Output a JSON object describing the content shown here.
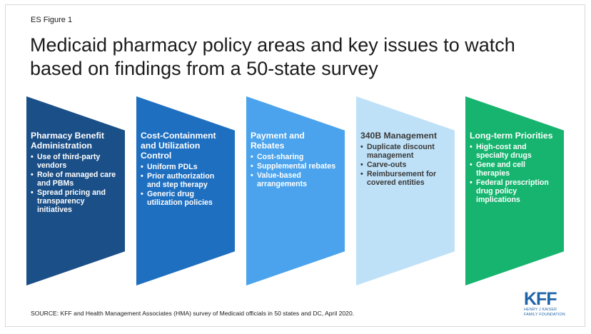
{
  "figure_label": "ES Figure 1",
  "title_line1": "Medicaid pharmacy policy areas and key issues to watch",
  "title_line2": "based on findings from a 50-state survey",
  "steps": [
    {
      "title": "Pharmacy Benefit Administration",
      "color": "#1b4f87",
      "text_color": "#ffffff",
      "items": [
        "Use of third-party vendors",
        "Role of managed care and PBMs",
        "Spread pricing and transparency initiatives"
      ]
    },
    {
      "title": "Cost-Containment and Utilization Control",
      "color": "#1f6fc0",
      "text_color": "#ffffff",
      "items": [
        "Uniform PDLs",
        "Prior authorization and step therapy",
        "Generic drug utilization policies"
      ]
    },
    {
      "title": "Payment and Rebates",
      "color": "#4aa3ec",
      "text_color": "#ffffff",
      "items": [
        "Cost-sharing",
        "Supplemental rebates",
        "Value-based arrangements"
      ]
    },
    {
      "title": "340B Management",
      "color": "#bfe1f8",
      "text_color": "#3a3a3a",
      "items": [
        "Duplicate discount management",
        "Carve-outs",
        "Reimbursement for covered entities"
      ]
    },
    {
      "title": "Long-term Priorities",
      "color": "#16b46e",
      "text_color": "#ffffff",
      "items": [
        "High-cost and specialty drugs",
        "Gene and cell therapies",
        "Federal prescription drug policy implications"
      ]
    }
  ],
  "bullet_char": "•",
  "source": "SOURCE: KFF and Health Management Associates (HMA) survey of Medicaid officials in 50 states and DC, April 2020.",
  "logo": {
    "mark": "KFF",
    "line1": "HENRY J KAISER",
    "line2": "FAMILY FOUNDATION",
    "color": "#1f64a8"
  }
}
